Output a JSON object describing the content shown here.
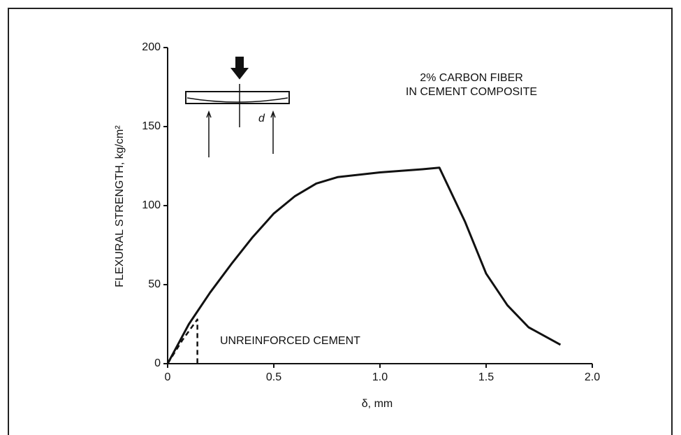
{
  "chart_data": {
    "type": "line",
    "xlabel": "δ, mm",
    "ylabel": "FLEXURAL STRENGTH, kg/cm²",
    "annotations": [
      "2% CARBON FIBER",
      "IN CEMENT COMPOSITE",
      "UNREINFORCED CEMENT"
    ],
    "inset_label": "d",
    "xlim": [
      0,
      2.0
    ],
    "ylim": [
      0,
      200
    ],
    "xticks": [
      0,
      0.5,
      {
        "value": 1.0,
        "label": "1.0"
      },
      1.5,
      {
        "value": 2.0,
        "label": "2.0"
      }
    ],
    "yticks": [
      0,
      50,
      100,
      150,
      200
    ],
    "grid": false,
    "series": [
      {
        "color": "#111111",
        "style": "solid",
        "x": [
          0,
          0.1,
          0.2,
          0.3,
          0.4,
          0.5,
          0.6,
          0.7,
          0.8,
          1.0,
          1.2,
          1.28,
          1.4,
          1.5,
          1.6,
          1.7,
          1.85
        ],
        "values": [
          0,
          25,
          45,
          63,
          80,
          95,
          106,
          114,
          118,
          121,
          123,
          124,
          90,
          57,
          37,
          23,
          12
        ]
      },
      {
        "color": "#111111",
        "style": "dashed",
        "x": [
          0,
          0.07,
          0.14,
          0.14
        ],
        "values": [
          0,
          15,
          28,
          0
        ]
      }
    ]
  }
}
